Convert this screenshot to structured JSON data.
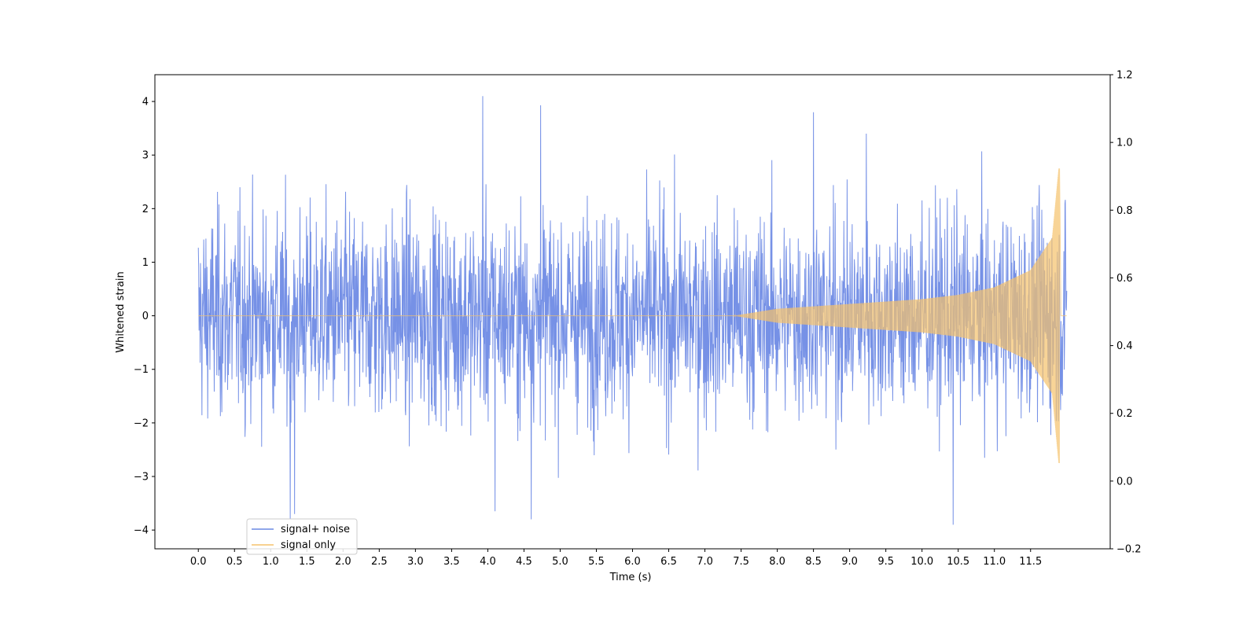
{
  "chart_data": {
    "type": "line",
    "title": "",
    "xlabel": "Time (s)",
    "ylabel": "Whitened strain",
    "y2label": "",
    "xlim": [
      -0.6,
      12.6
    ],
    "ylim": [
      -4.35,
      4.5
    ],
    "y2lim": [
      -0.2,
      1.2
    ],
    "xticks": [
      0.0,
      0.5,
      1.0,
      1.5,
      2.0,
      2.5,
      3.0,
      3.5,
      4.0,
      4.5,
      5.0,
      5.5,
      6.0,
      6.5,
      7.0,
      7.5,
      8.0,
      8.5,
      9.0,
      9.5,
      10.0,
      10.5,
      11.0,
      11.5
    ],
    "xtick_labels": [
      "0.0",
      "0.5",
      "1.0",
      "1.5",
      "2.0",
      "2.5",
      "3.0",
      "3.5",
      "4.0",
      "4.5",
      "5.0",
      "5.5",
      "6.0",
      "6.5",
      "7.0",
      "7.5",
      "8.0",
      "8.5",
      "9.0",
      "9.5",
      "10.0",
      "10.5",
      "11.0",
      "11.5"
    ],
    "yticks": [
      -4,
      -3,
      -2,
      -1,
      0,
      1,
      2,
      3,
      4
    ],
    "ytick_labels": [
      "−4",
      "−3",
      "−2",
      "−1",
      "0",
      "1",
      "2",
      "3",
      "4"
    ],
    "y2ticks": [
      -0.2,
      0.0,
      0.2,
      0.4,
      0.6,
      0.8,
      1.0,
      1.2
    ],
    "y2tick_labels": [
      "−0.2",
      "0.0",
      "0.2",
      "0.4",
      "0.6",
      "0.8",
      "1.0",
      "1.2"
    ],
    "grid": false,
    "legend_position": "lower-left",
    "series": [
      {
        "name": "signal+ noise",
        "color": "#6a88e4",
        "kind": "noise",
        "x_range": [
          0.0,
          12.0
        ],
        "typical_envelope": [
          -2.2,
          2.2
        ],
        "peaks": [
          {
            "x": 3.93,
            "y": 4.1
          },
          {
            "x": 4.73,
            "y": 3.93
          },
          {
            "x": 8.5,
            "y": 3.8
          },
          {
            "x": 9.23,
            "y": 3.4
          },
          {
            "x": 1.27,
            "y": -3.8
          },
          {
            "x": 1.33,
            "y": -3.7
          },
          {
            "x": 4.6,
            "y": -3.8
          },
          {
            "x": 10.43,
            "y": -3.9
          },
          {
            "x": 4.1,
            "y": -3.65
          }
        ]
      },
      {
        "name": "signal only",
        "color": "#f5c26b",
        "kind": "chirp",
        "x_range": [
          0.0,
          12.0
        ],
        "baseline": 0.0,
        "onset_x": 7.4,
        "merger_x": 11.9,
        "amplitude_points": [
          {
            "x": 7.4,
            "y": 0.0
          },
          {
            "x": 8.0,
            "y": 0.13
          },
          {
            "x": 9.0,
            "y": 0.22
          },
          {
            "x": 10.0,
            "y": 0.31
          },
          {
            "x": 10.5,
            "y": 0.39
          },
          {
            "x": 11.0,
            "y": 0.53
          },
          {
            "x": 11.5,
            "y": 0.85
          },
          {
            "x": 11.8,
            "y": 1.45
          },
          {
            "x": 11.89,
            "y": 2.75
          }
        ]
      }
    ]
  }
}
